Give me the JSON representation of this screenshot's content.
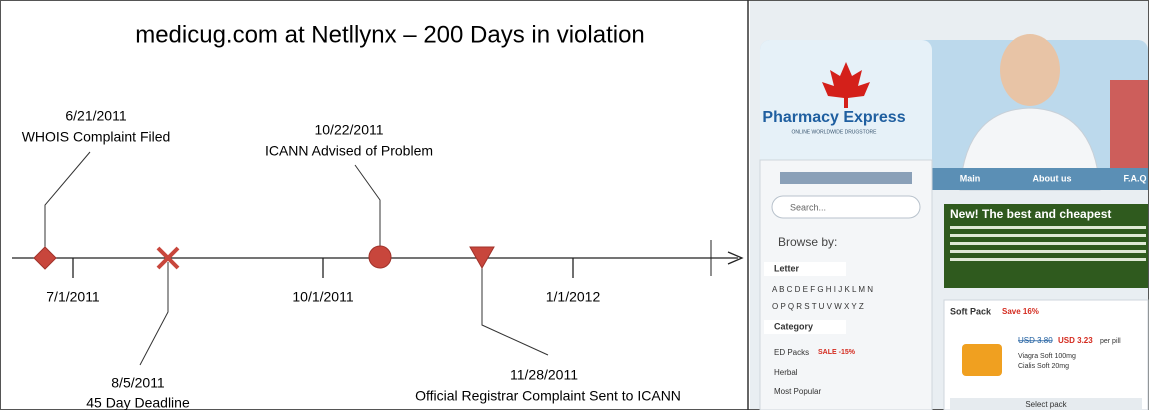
{
  "title": "medicug.com at Netllynx – 200 Days in violation",
  "axis_labels": [
    "7/1/2011",
    "10/1/2011",
    "1/1/2012"
  ],
  "events": [
    {
      "date": "6/21/2011",
      "label": "WHOIS Complaint Filed"
    },
    {
      "date": "8/5/2011",
      "label": "45 Day Deadline"
    },
    {
      "date": "10/22/2011",
      "label": "ICANN Advised of Problem"
    },
    {
      "date": "11/28/2011",
      "label": "Official Registrar Complaint Sent to ICANN"
    }
  ],
  "website": {
    "brand": "Pharmacy Express",
    "tagline": "ONLINE WORLDWIDE DRUGSTORE",
    "nav": [
      "Main",
      "About us",
      "F.A.Q"
    ],
    "search": "Search...",
    "browse": "Browse by:",
    "letter": "Letter",
    "letters": [
      "A B C D E F G H I J K L M N",
      "O P Q R S T U V W X Y Z"
    ],
    "category": "Category",
    "categories": [
      "ED Packs",
      "Herbal",
      "Most Popular"
    ],
    "sale": "SALE -15%",
    "banner_title": "New! The best and cheapest",
    "pack_title": "Soft Pack",
    "pack_save": "Save 16%",
    "old_price": "USD 3.80",
    "new_price": "USD 3.23",
    "per_pill": "per pill",
    "products": [
      "Viagra Soft 100mg",
      "Cialis Soft 20mg"
    ],
    "select": "Select pack"
  }
}
